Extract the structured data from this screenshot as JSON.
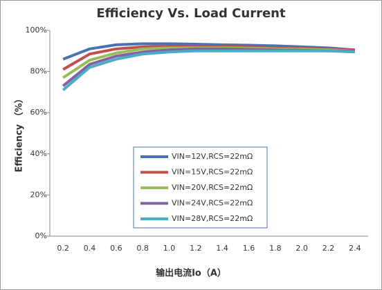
{
  "chart_data": {
    "type": "line",
    "title": "Efficiency Vs. Load Current",
    "x_label": "输出电流Io（A）",
    "y_label": "Efficiency （%）",
    "categories": [
      "0.2",
      "0.4",
      "0.6",
      "0.8",
      "1.0",
      "1.2",
      "1.4",
      "1.6",
      "1.8",
      "2.0",
      "2.2",
      "2.4"
    ],
    "ylim": [
      0,
      100
    ],
    "yticks": [
      {
        "value": 0,
        "label": "0%"
      },
      {
        "value": 20,
        "label": "20%"
      },
      {
        "value": 40,
        "label": "40%"
      },
      {
        "value": 60,
        "label": "60%"
      },
      {
        "value": 80,
        "label": "80%"
      },
      {
        "value": 100,
        "label": "100%"
      }
    ],
    "grid": false,
    "series": [
      {
        "name": "VIN=12V,RCS=22mΩ",
        "color": "#4a72b0",
        "values": [
          86,
          91,
          93,
          93.5,
          93.5,
          93.3,
          93,
          92.8,
          92.5,
          92,
          91.5,
          90.5
        ]
      },
      {
        "name": "VIN=15V,RCS=22mΩ",
        "color": "#c0504d",
        "values": [
          81,
          88.5,
          91,
          92,
          92.3,
          92.3,
          92,
          92,
          91.5,
          91.3,
          91,
          90.5
        ]
      },
      {
        "name": "VIN=20V,RCS=22mΩ",
        "color": "#9bbb59",
        "values": [
          77,
          85.5,
          89,
          91,
          91.5,
          91.5,
          91.5,
          91.3,
          91,
          90.8,
          90.5,
          90
        ]
      },
      {
        "name": "VIN=24V,RCS=22mΩ",
        "color": "#8064a2",
        "values": [
          73,
          83.5,
          87.5,
          89.5,
          90.5,
          91,
          91,
          90.8,
          90.5,
          90.3,
          90,
          90
        ]
      },
      {
        "name": "VIN=28V,RCS=22mΩ",
        "color": "#4bacc6",
        "values": [
          71,
          82,
          86,
          88.5,
          89.5,
          90,
          90,
          90,
          90,
          90,
          90,
          89.5
        ]
      }
    ]
  }
}
